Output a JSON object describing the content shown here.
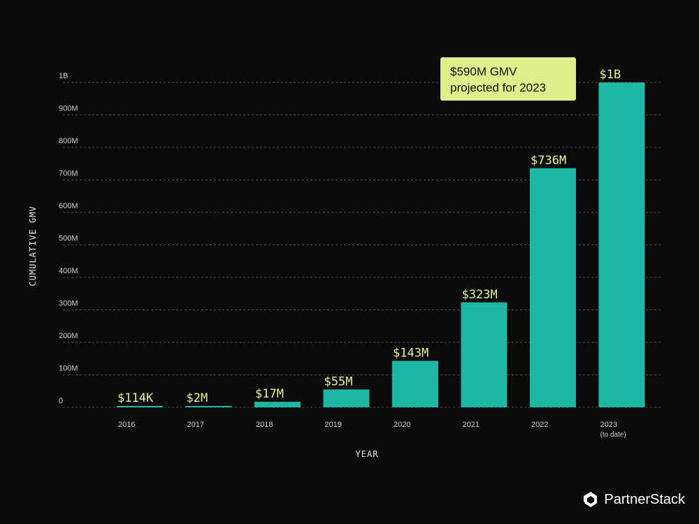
{
  "chart_data": {
    "type": "bar",
    "categories": [
      "2016",
      "2017",
      "2018",
      "2019",
      "2020",
      "2021",
      "2022",
      "2023"
    ],
    "category_sublabels": [
      "",
      "",
      "",
      "",
      "",
      "",
      "",
      "(to date)"
    ],
    "values": [
      114000,
      2000000,
      17000000,
      55000000,
      143000000,
      323000000,
      736000000,
      1000000000
    ],
    "data_labels": [
      "$114K",
      "$2M",
      "$17M",
      "$55M",
      "$143M",
      "$323M",
      "$736M",
      "$1B"
    ],
    "xlabel": "YEAR",
    "ylabel": "CUMULATIVE GMV",
    "ylim": [
      0,
      1000000000
    ],
    "yticks": [
      0,
      100000000,
      200000000,
      300000000,
      400000000,
      500000000,
      600000000,
      700000000,
      800000000,
      900000000,
      1000000000
    ],
    "ytick_labels": [
      "0",
      "100M",
      "200M",
      "300M",
      "400M",
      "500M",
      "600M",
      "700M",
      "800M",
      "900M",
      "1B"
    ],
    "grid": true,
    "bar_color": "#1bb8a5",
    "label_color": "#e6f28a",
    "annotation": {
      "line1": "$590M GMV",
      "line2": "projected for 2023",
      "color": "#dff08a"
    }
  },
  "brand": {
    "name": "PartnerStack",
    "logo_icon": "partnerstack-logo-icon"
  }
}
